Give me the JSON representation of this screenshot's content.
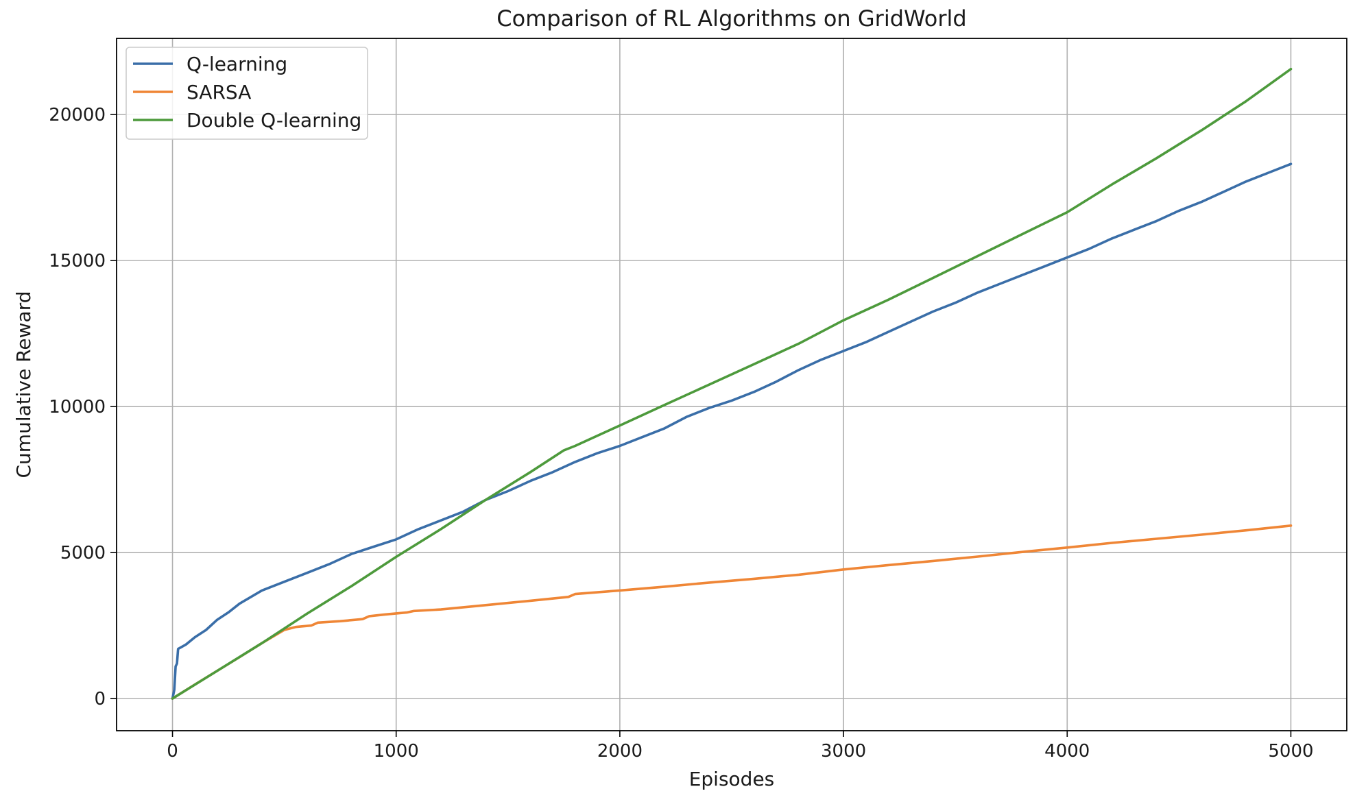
{
  "chart_data": {
    "type": "line",
    "title": "Comparison of RL Algorithms on GridWorld",
    "xlabel": "Episodes",
    "ylabel": "Cumulative Reward",
    "xlim": [
      -250,
      5250
    ],
    "ylim": [
      -1100,
      22600
    ],
    "xticks": [
      0,
      1000,
      2000,
      3000,
      4000,
      5000
    ],
    "yticks": [
      0,
      5000,
      10000,
      15000,
      20000
    ],
    "grid": true,
    "legend_position": "top-left",
    "series": [
      {
        "name": "Q-learning",
        "color": "#3a6ea8",
        "points": [
          [
            0,
            0
          ],
          [
            8,
            300
          ],
          [
            14,
            1100
          ],
          [
            20,
            1200
          ],
          [
            25,
            1700
          ],
          [
            60,
            1850
          ],
          [
            100,
            2100
          ],
          [
            150,
            2350
          ],
          [
            200,
            2700
          ],
          [
            250,
            2950
          ],
          [
            300,
            3250
          ],
          [
            400,
            3700
          ],
          [
            500,
            4000
          ],
          [
            600,
            4300
          ],
          [
            700,
            4600
          ],
          [
            800,
            4950
          ],
          [
            900,
            5200
          ],
          [
            1000,
            5450
          ],
          [
            1100,
            5800
          ],
          [
            1200,
            6100
          ],
          [
            1300,
            6400
          ],
          [
            1400,
            6800
          ],
          [
            1500,
            7100
          ],
          [
            1600,
            7450
          ],
          [
            1700,
            7750
          ],
          [
            1800,
            8100
          ],
          [
            1900,
            8400
          ],
          [
            2000,
            8650
          ],
          [
            2100,
            8950
          ],
          [
            2200,
            9250
          ],
          [
            2300,
            9650
          ],
          [
            2400,
            9950
          ],
          [
            2500,
            10200
          ],
          [
            2600,
            10500
          ],
          [
            2700,
            10850
          ],
          [
            2800,
            11250
          ],
          [
            2900,
            11600
          ],
          [
            3000,
            11900
          ],
          [
            3100,
            12200
          ],
          [
            3200,
            12550
          ],
          [
            3300,
            12900
          ],
          [
            3400,
            13250
          ],
          [
            3500,
            13550
          ],
          [
            3600,
            13900
          ],
          [
            3700,
            14200
          ],
          [
            3800,
            14500
          ],
          [
            3900,
            14800
          ],
          [
            4000,
            15100
          ],
          [
            4100,
            15400
          ],
          [
            4200,
            15750
          ],
          [
            4300,
            16050
          ],
          [
            4400,
            16350
          ],
          [
            4500,
            16700
          ],
          [
            4600,
            17000
          ],
          [
            4700,
            17350
          ],
          [
            4800,
            17700
          ],
          [
            4900,
            18000
          ],
          [
            5000,
            18300
          ]
        ]
      },
      {
        "name": "SARSA",
        "color": "#ef8636",
        "points": [
          [
            0,
            0
          ],
          [
            100,
            480
          ],
          [
            200,
            950
          ],
          [
            300,
            1420
          ],
          [
            400,
            1900
          ],
          [
            500,
            2350
          ],
          [
            550,
            2450
          ],
          [
            620,
            2500
          ],
          [
            650,
            2600
          ],
          [
            750,
            2650
          ],
          [
            850,
            2720
          ],
          [
            880,
            2820
          ],
          [
            950,
            2880
          ],
          [
            1050,
            2950
          ],
          [
            1080,
            3000
          ],
          [
            1200,
            3050
          ],
          [
            1400,
            3200
          ],
          [
            1600,
            3350
          ],
          [
            1770,
            3480
          ],
          [
            1800,
            3580
          ],
          [
            2000,
            3700
          ],
          [
            2200,
            3830
          ],
          [
            2400,
            3970
          ],
          [
            2600,
            4100
          ],
          [
            2800,
            4240
          ],
          [
            3000,
            4420
          ],
          [
            3200,
            4570
          ],
          [
            3400,
            4710
          ],
          [
            3600,
            4860
          ],
          [
            3800,
            5020
          ],
          [
            4000,
            5170
          ],
          [
            4200,
            5330
          ],
          [
            4400,
            5470
          ],
          [
            4600,
            5610
          ],
          [
            4800,
            5760
          ],
          [
            5000,
            5920
          ]
        ]
      },
      {
        "name": "Double Q-learning",
        "color": "#4d9a3c",
        "points": [
          [
            0,
            0
          ],
          [
            200,
            950
          ],
          [
            400,
            1900
          ],
          [
            600,
            2900
          ],
          [
            800,
            3850
          ],
          [
            1000,
            4850
          ],
          [
            1200,
            5800
          ],
          [
            1400,
            6800
          ],
          [
            1600,
            7750
          ],
          [
            1750,
            8500
          ],
          [
            1800,
            8650
          ],
          [
            2000,
            9350
          ],
          [
            2200,
            10050
          ],
          [
            2400,
            10750
          ],
          [
            2600,
            11450
          ],
          [
            2800,
            12150
          ],
          [
            3000,
            12950
          ],
          [
            3200,
            13650
          ],
          [
            3400,
            14400
          ],
          [
            3600,
            15150
          ],
          [
            3800,
            15900
          ],
          [
            4000,
            16650
          ],
          [
            4200,
            17600
          ],
          [
            4400,
            18500
          ],
          [
            4600,
            19450
          ],
          [
            4800,
            20450
          ],
          [
            5000,
            21550
          ]
        ]
      }
    ]
  }
}
